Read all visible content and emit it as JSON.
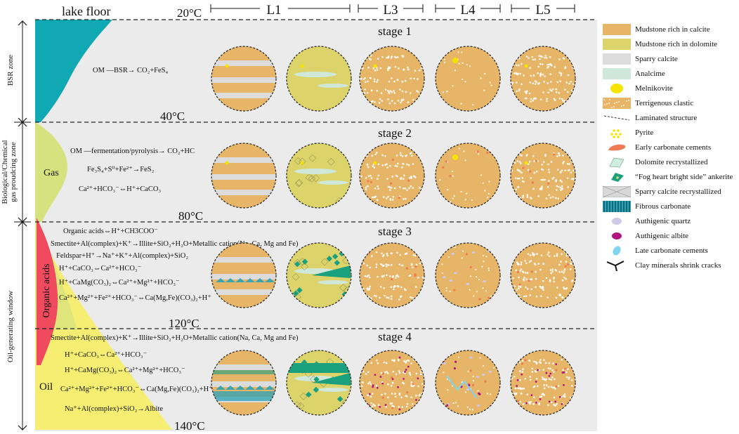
{
  "header": {
    "lake_floor": "lake floor",
    "columns": [
      "L1",
      "L3",
      "L4",
      "L5"
    ]
  },
  "temperatures": [
    "20°C",
    "40°C",
    "80°C",
    "120°C",
    "140°C"
  ],
  "zones": {
    "bsr": "BSR zone",
    "bio_line1": "Biological/Chemical",
    "bio_line2": "gas proudcing zone",
    "oil_window": "Oil-generating window"
  },
  "curve_labels": {
    "gas": "Gas",
    "organic_acids": "Organic acids",
    "oil": "Oil"
  },
  "stages": [
    "stage 1",
    "stage 2",
    "stage 3",
    "stage 4"
  ],
  "reactions": {
    "s1": [
      "OM —BSR→ CO₂+FeS₄"
    ],
    "s2": [
      "OM —fermentation/pyrolysis→ CO₂+HC",
      "Fe₃S₄+S⁰+Fe²⁺→FeS₂",
      "Ca²⁺+HCO₃⁻⇔H⁺+CaCO₃"
    ],
    "s3": [
      "Organic acids⇔H⁺+CH3COO⁻",
      "Smectite+Al(complex)+K⁺→Illite+SiO₂+H₂O+Metallic cation(Na, Ca, Mg and Fe)",
      "Feldspar+H⁺→Na⁺+K⁺+Al(complex)+SiO₂",
      "H⁺+CaCO₃⇔Ca²⁺+HCO₃⁻",
      "H⁺+CaMg(CO₃)₂⇔Ca²⁺+Mg²⁺+HCO₃⁻",
      "Ca²⁺+Mg²⁺+Fe²⁺+HCO₃⁻⇔Ca(Mg,Fe)(CO₃)₂+H⁺"
    ],
    "s4": [
      "Smectite+Al(complex)+K⁺→Illite+SiO₂+H₂O+Metallic cation(Na, Ca, Mg and Fe)",
      "H⁺+CaCO₃⇔Ca²⁺+HCO₃⁻",
      "H⁺+CaMg(CO₃)₂⇔Ca²⁺+Mg²⁺+HCO₃⁻",
      "Ca²⁺+Mg²⁺+Fe²⁺+HCO₃⁻⇔Ca(Mg,Fe)(CO₃)₂+H⁺",
      "Na⁺+Al(complex)+SiO₂→Albite"
    ]
  },
  "legend": [
    {
      "label": "Mudstone rich in calcite",
      "icon": "mudstone-calcite-swatch",
      "color": "#e6b567"
    },
    {
      "label": "Mudstone rich in dolomite",
      "icon": "mudstone-dolomite-swatch",
      "color": "#dcd46a"
    },
    {
      "label": "Sparry calcite",
      "icon": "sparry-calcite-swatch",
      "color": "#dcdcdc"
    },
    {
      "label": "Analcime",
      "icon": "analcime-swatch",
      "color": "#cfe8da"
    },
    {
      "label": "Melnikovite",
      "icon": "melnikovite-icon",
      "color": "#f7e300"
    },
    {
      "label": "Terrigenous clastic",
      "icon": "terrigenous-clastic-swatch",
      "color": "#e6b567"
    },
    {
      "label": "Laminated structure",
      "icon": "laminated-structure-icon",
      "color": "#333333"
    },
    {
      "label": "Pyrite",
      "icon": "pyrite-icon",
      "color": "#f7e300"
    },
    {
      "label": "Early carbonate cements",
      "icon": "early-carbonate-cement-icon",
      "color": "#f07b52"
    },
    {
      "label": "Dolomite recrystallized",
      "icon": "dolomite-recrystallized-icon",
      "color": "#cfeee0"
    },
    {
      "label": "“Fog heart bright side” ankerite",
      "icon": "ankerite-icon",
      "color": "#1aa07f"
    },
    {
      "label": "Sparry calcite recrystallized",
      "icon": "sparry-calcite-recrystallized-icon",
      "color": "#d8d8d8"
    },
    {
      "label": "Fibrous carbonate",
      "icon": "fibrous-carbonate-icon",
      "color": "#2aa3b8"
    },
    {
      "label": "Authigenic quartz",
      "icon": "authigenic-quartz-icon",
      "color": "#cfc8e6"
    },
    {
      "label": "Authigenic albite",
      "icon": "authigenic-albite-icon",
      "color": "#b0167e"
    },
    {
      "label": "Late carbonate cements",
      "icon": "late-carbonate-cement-icon",
      "color": "#7fd4ef"
    },
    {
      "label": "Clay minerals shrink cracks",
      "icon": "clay-shrink-crack-icon",
      "color": "#111111"
    }
  ],
  "colors": {
    "panel": "#ebebeb",
    "calcite": "#e6b567",
    "dolomite": "#dcd46a",
    "sparry": "#dcdcdc",
    "analcime": "#cfe8da",
    "yellow": "#f7e300",
    "orange": "#f07b52",
    "teal": "#0fa8b3",
    "gasgreen": "#d6e27e",
    "oilyellow": "#f6ee72",
    "red": "#ef4a5e",
    "ankerite": "#1aa07f",
    "fibrous": "#2aa3b8",
    "albite": "#b0167e",
    "quartz": "#cfc8e6",
    "late": "#7fd4ef"
  }
}
